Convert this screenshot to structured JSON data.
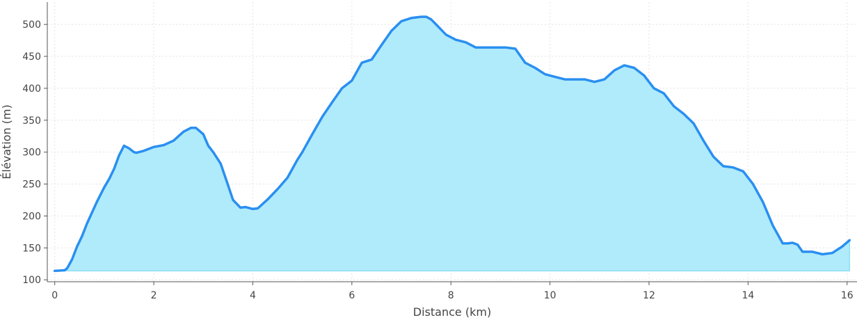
{
  "chart_data": {
    "type": "area",
    "title": "",
    "xlabel": "Distance (km)",
    "ylabel": "Élévation (m)",
    "xlim": [
      -0.15,
      16.2
    ],
    "ylim": [
      97,
      535
    ],
    "xticks": [
      0,
      2,
      4,
      6,
      8,
      10,
      12,
      14,
      16
    ],
    "yticks": [
      100,
      150,
      200,
      250,
      300,
      350,
      400,
      450,
      500
    ],
    "grid": true,
    "legend": "none",
    "fill_baseline": 114,
    "colors": {
      "line": "#2a8ff0",
      "fill": "#b0ebfb",
      "fill_edge": "#8fdff5",
      "grid": "#e2e2e2",
      "axis": "#555555"
    },
    "series": [
      {
        "x": [
          0,
          0.2,
          0.25,
          0.35,
          0.45,
          0.55,
          0.65,
          0.75,
          0.85,
          1.0,
          1.1,
          1.2,
          1.3,
          1.4,
          1.5,
          1.6,
          1.65,
          1.8,
          2.0,
          2.2,
          2.4,
          2.6,
          2.75,
          2.85,
          3.0,
          3.1,
          3.2,
          3.35,
          3.5,
          3.6,
          3.75,
          3.85,
          4.0,
          4.1,
          4.3,
          4.5,
          4.7,
          4.9,
          5.0,
          5.2,
          5.4,
          5.6,
          5.8,
          6.0,
          6.2,
          6.4,
          6.6,
          6.8,
          7.0,
          7.2,
          7.4,
          7.5,
          7.6,
          7.7,
          7.9,
          8.1,
          8.3,
          8.5,
          8.7,
          8.9,
          9.1,
          9.3,
          9.5,
          9.7,
          9.9,
          10.1,
          10.3,
          10.5,
          10.7,
          10.9,
          11.1,
          11.3,
          11.5,
          11.7,
          11.9,
          12.1,
          12.3,
          12.5,
          12.7,
          12.9,
          13.1,
          13.3,
          13.5,
          13.7,
          13.9,
          14.1,
          14.3,
          14.5,
          14.7,
          14.8,
          14.9,
          15.0,
          15.1,
          15.3,
          15.5,
          15.7,
          15.9,
          16.05
        ],
        "values": [
          114,
          115,
          118,
          132,
          152,
          168,
          188,
          205,
          222,
          245,
          258,
          274,
          295,
          310,
          306,
          300,
          299,
          302,
          308,
          311,
          318,
          332,
          338,
          338,
          328,
          310,
          300,
          282,
          248,
          225,
          213,
          214,
          211,
          212,
          226,
          242,
          260,
          288,
          300,
          328,
          355,
          378,
          400,
          412,
          440,
          445,
          468,
          490,
          505,
          510,
          512,
          512,
          508,
          500,
          484,
          476,
          472,
          464,
          464,
          464,
          464,
          462,
          440,
          432,
          422,
          418,
          414,
          414,
          414,
          410,
          414,
          428,
          436,
          432,
          420,
          400,
          392,
          372,
          360,
          345,
          318,
          293,
          278,
          276,
          270,
          250,
          222,
          185,
          157,
          157,
          158,
          155,
          144,
          144,
          140,
          142,
          152,
          162
        ]
      }
    ]
  }
}
